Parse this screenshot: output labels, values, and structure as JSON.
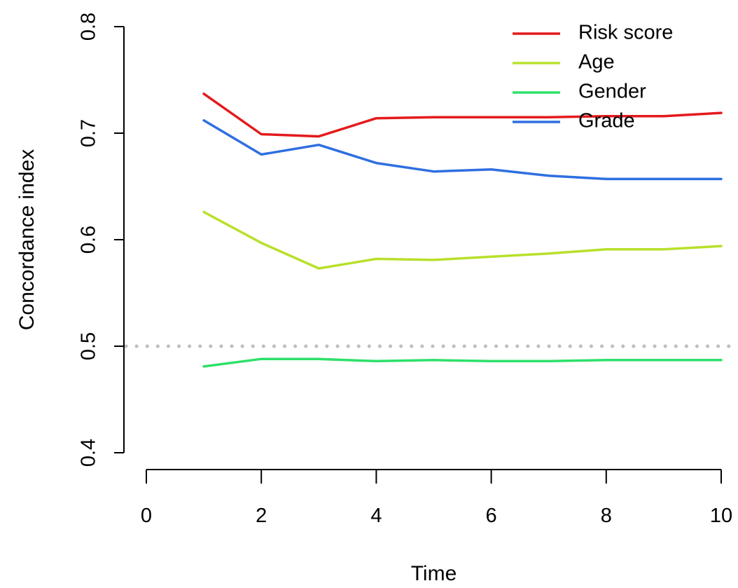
{
  "chart_data": {
    "type": "line",
    "title": "",
    "xlabel": "Time",
    "ylabel": "Concordance index",
    "xlim": [
      0,
      10
    ],
    "ylim": [
      0.4,
      0.8
    ],
    "x_ticks": [
      0,
      2,
      4,
      6,
      8,
      10
    ],
    "y_ticks": [
      0.4,
      0.5,
      0.6,
      0.7,
      0.8
    ],
    "x_tick_labels": [
      "0",
      "2",
      "4",
      "6",
      "8",
      "10"
    ],
    "y_tick_labels": [
      "0.4",
      "0.5",
      "0.6",
      "0.7",
      "0.8"
    ],
    "grid": false,
    "reference_line": {
      "y": 0.5,
      "style": "dotted",
      "color": "#bebebe"
    },
    "legend_position": "top-right",
    "x": [
      1,
      2,
      3,
      4,
      5,
      6,
      7,
      8,
      9,
      10
    ],
    "series": [
      {
        "name": "Risk score",
        "color": "#e41a1c",
        "values": [
          0.737,
          0.699,
          0.697,
          0.714,
          0.715,
          0.715,
          0.715,
          0.716,
          0.716,
          0.719
        ]
      },
      {
        "name": "Age",
        "color": "#b8e02b",
        "values": [
          0.626,
          0.597,
          0.573,
          0.582,
          0.581,
          0.584,
          0.587,
          0.591,
          0.591,
          0.594
        ]
      },
      {
        "name": "Gender",
        "color": "#2ee06a",
        "values": [
          0.481,
          0.488,
          0.488,
          0.486,
          0.487,
          0.486,
          0.486,
          0.487,
          0.487,
          0.487
        ]
      },
      {
        "name": "Grade",
        "color": "#2f6fe0",
        "values": [
          0.712,
          0.68,
          0.689,
          0.672,
          0.664,
          0.666,
          0.66,
          0.657,
          0.657,
          0.657
        ]
      }
    ]
  }
}
